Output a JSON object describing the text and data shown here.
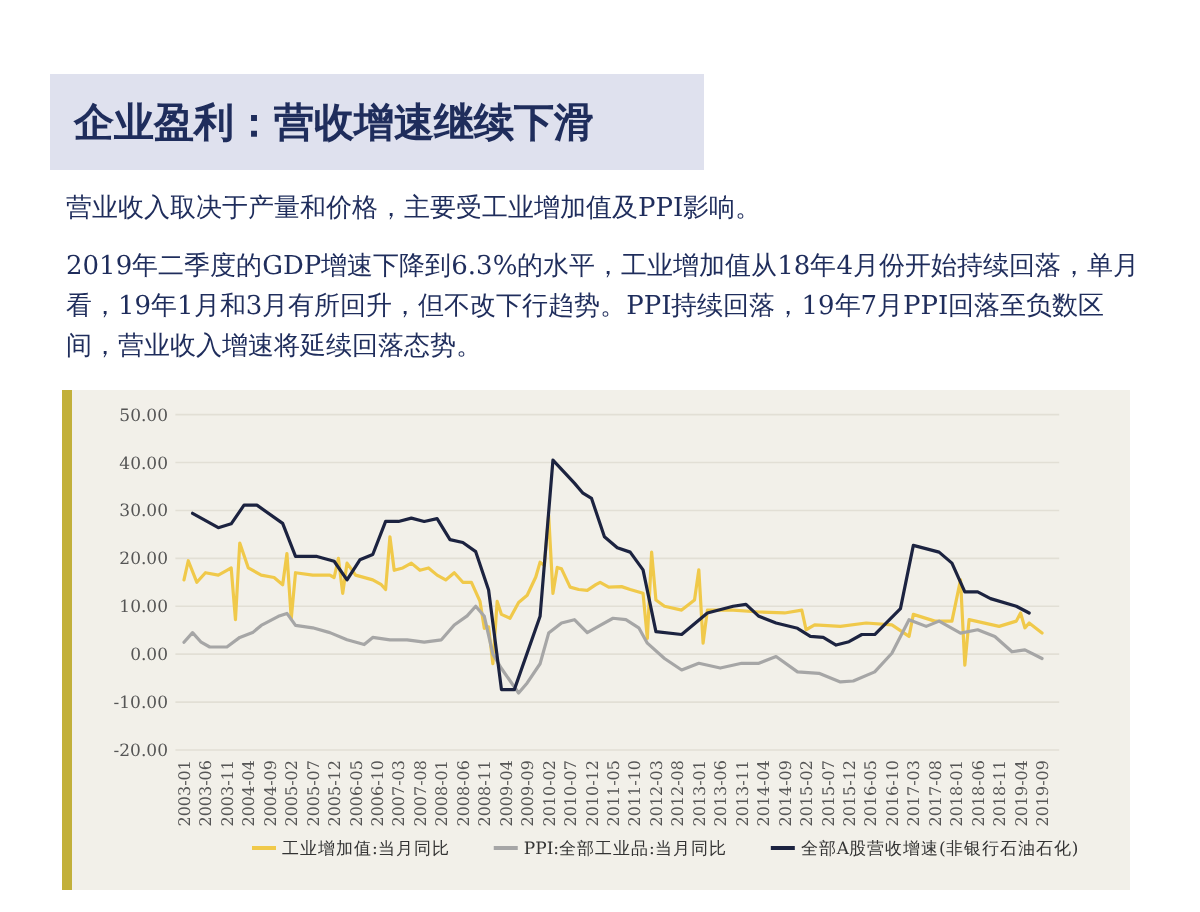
{
  "chart_data": {
    "type": "line",
    "title": "企业盈利：营收增速继续下滑",
    "subtitle": "营业收入取决于产量和价格，主要受工业增加值及PPI影响。",
    "annotations": [
      "2019年二季度的GDP增速下降到6.3%的水平，工业增加值从18年4月份开始持续回落，单月看，19年1月和3月有所回升，但不改下行趋势。PPI持续回落，19年7月PPI回落至负数区间，营业收入增速将延续回落态势。"
    ],
    "xlim": [
      "2002-11",
      "2020-01"
    ],
    "xticks": [
      "2003-01",
      "2003-06",
      "2003-11",
      "2004-04",
      "2004-09",
      "2005-02",
      "2005-07",
      "2005-12",
      "2006-05",
      "2006-10",
      "2007-03",
      "2007-08",
      "2008-01",
      "2008-06",
      "2008-11",
      "2009-04",
      "2009-09",
      "2010-02",
      "2010-07",
      "2010-12",
      "2011-05",
      "2011-10",
      "2012-03",
      "2012-08",
      "2013-01",
      "2013-06",
      "2013-11",
      "2014-04",
      "2014-09",
      "2015-02",
      "2015-07",
      "2015-12",
      "2016-05",
      "2016-10",
      "2017-03",
      "2017-08",
      "2018-01",
      "2018-06",
      "2018-11",
      "2019-04",
      "2019-09"
    ],
    "ylim": [
      -20,
      50
    ],
    "yticks": [
      {
        "value": -20,
        "label": "-20.00"
      },
      {
        "value": -10,
        "label": "-10.00"
      },
      {
        "value": 0,
        "label": "0.00"
      },
      {
        "value": 10,
        "label": "10.00"
      },
      {
        "value": 20,
        "label": "20.00"
      },
      {
        "value": 30,
        "label": "30.00"
      },
      {
        "value": 40,
        "label": "40.00"
      },
      {
        "value": 50,
        "label": "50.00"
      }
    ],
    "grid": "y",
    "legend": "bottom",
    "series": [
      {
        "name": "工业增加值:当月同比",
        "color": "#f0c94a",
        "x": [
          "2003-01",
          "2003-02",
          "2003-04",
          "2003-06",
          "2003-09",
          "2003-11",
          "2003-12",
          "2004-01",
          "2004-02",
          "2004-04",
          "2004-07",
          "2004-10",
          "2004-12",
          "2005-01",
          "2005-02",
          "2005-03",
          "2005-07",
          "2005-11",
          "2005-12",
          "2006-01",
          "2006-02",
          "2006-03",
          "2006-05",
          "2006-09",
          "2006-11",
          "2006-12",
          "2007-01",
          "2007-02",
          "2007-04",
          "2007-06",
          "2007-08",
          "2007-10",
          "2007-12",
          "2008-02",
          "2008-04",
          "2008-06",
          "2008-08",
          "2008-10",
          "2008-11",
          "2008-12",
          "2009-01",
          "2009-02",
          "2009-03",
          "2009-05",
          "2009-07",
          "2009-09",
          "2009-11",
          "2009-12",
          "2010-01",
          "2010-02",
          "2010-03",
          "2010-04",
          "2010-05",
          "2010-07",
          "2010-09",
          "2010-11",
          "2011-01",
          "2011-02",
          "2011-04",
          "2011-07",
          "2011-09",
          "2011-12",
          "2012-01",
          "2012-02",
          "2012-03",
          "2012-05",
          "2012-09",
          "2012-12",
          "2013-01",
          "2013-02",
          "2013-03",
          "2013-09",
          "2014-03",
          "2014-09",
          "2015-01",
          "2015-02",
          "2015-04",
          "2015-10",
          "2016-04",
          "2016-10",
          "2017-02",
          "2017-03",
          "2017-08",
          "2017-12",
          "2018-02",
          "2018-03",
          "2018-04",
          "2018-11",
          "2019-03",
          "2019-04",
          "2019-05",
          "2019-06",
          "2019-09"
        ],
        "values": [
          15.5,
          19.5,
          15.0,
          17.0,
          16.5,
          17.5,
          18.0,
          7.2,
          23.2,
          18.0,
          16.5,
          16.0,
          14.5,
          21.0,
          7.4,
          17.0,
          16.5,
          16.5,
          16.0,
          20.0,
          12.7,
          19.0,
          16.5,
          15.5,
          14.5,
          13.5,
          24.5,
          17.5,
          18.0,
          19.0,
          17.5,
          18.0,
          16.5,
          15.5,
          17.0,
          15.0,
          15.0,
          11.0,
          5.4,
          5.7,
          -2.0,
          11.0,
          8.3,
          7.5,
          10.8,
          12.3,
          16.1,
          19.2,
          18.5,
          29.0,
          12.7,
          18.1,
          17.8,
          14.0,
          13.5,
          13.3,
          14.5,
          15.0,
          14.0,
          14.1,
          13.5,
          12.7,
          3.3,
          21.3,
          11.3,
          10.0,
          9.2,
          11.3,
          17.6,
          2.3,
          9.2,
          9.2,
          8.8,
          8.6,
          9.2,
          5.1,
          6.1,
          5.8,
          6.5,
          6.1,
          3.7,
          8.3,
          6.9,
          6.9,
          15.5,
          -2.3,
          7.2,
          5.8,
          6.9,
          8.6,
          5.5,
          6.5,
          4.4
        ]
      },
      {
        "name": "PPI:全部工业品:当月同比",
        "color": "#a6a6a6",
        "x": [
          "2003-01",
          "2003-03",
          "2003-05",
          "2003-07",
          "2003-11",
          "2004-02",
          "2004-05",
          "2004-07",
          "2004-11",
          "2005-01",
          "2005-03",
          "2005-07",
          "2005-11",
          "2006-03",
          "2006-07",
          "2006-09",
          "2007-01",
          "2007-05",
          "2007-09",
          "2008-01",
          "2008-04",
          "2008-07",
          "2008-09",
          "2008-11",
          "2009-01",
          "2009-03",
          "2009-07",
          "2009-09",
          "2009-12",
          "2010-02",
          "2010-05",
          "2010-08",
          "2010-11",
          "2011-02",
          "2011-05",
          "2011-08",
          "2011-11",
          "2012-01",
          "2012-05",
          "2012-09",
          "2013-01",
          "2013-06",
          "2013-11",
          "2014-03",
          "2014-07",
          "2014-12",
          "2015-05",
          "2015-10",
          "2016-01",
          "2016-06",
          "2016-10",
          "2017-02",
          "2017-06",
          "2017-09",
          "2018-02",
          "2018-06",
          "2018-10",
          "2019-02",
          "2019-05",
          "2019-09"
        ],
        "values": [
          2.5,
          4.5,
          2.5,
          1.5,
          1.5,
          3.5,
          4.5,
          6.0,
          7.9,
          8.5,
          6.0,
          5.5,
          4.5,
          3.0,
          2.0,
          3.5,
          3.0,
          3.0,
          2.5,
          3.0,
          6.1,
          8.0,
          10.0,
          7.9,
          0.0,
          -3.0,
          -8.1,
          -6.0,
          -2.0,
          4.4,
          6.5,
          7.2,
          4.5,
          6.0,
          7.5,
          7.2,
          5.5,
          2.3,
          -0.9,
          -3.3,
          -1.9,
          -2.9,
          -1.9,
          -1.9,
          -0.5,
          -3.7,
          -4.0,
          -5.8,
          -5.6,
          -3.7,
          0.2,
          7.2,
          5.8,
          6.9,
          4.4,
          5.1,
          3.7,
          0.5,
          0.9,
          -0.9
        ]
      },
      {
        "name": "全部A股营收增速(非银行石油石化)",
        "color": "#1c2340",
        "x": [
          "2003-03",
          "2003-09",
          "2003-12",
          "2004-03",
          "2004-06",
          "2004-12",
          "2005-03",
          "2005-08",
          "2005-12",
          "2006-03",
          "2006-06",
          "2006-09",
          "2006-12",
          "2007-03",
          "2007-06",
          "2007-09",
          "2007-12",
          "2008-03",
          "2008-06",
          "2008-09",
          "2008-12",
          "2009-03",
          "2009-06",
          "2009-12",
          "2010-03",
          "2010-08",
          "2010-10",
          "2010-12",
          "2011-03",
          "2011-06",
          "2011-09",
          "2011-12",
          "2012-03",
          "2012-09",
          "2013-03",
          "2013-09",
          "2013-12",
          "2014-03",
          "2014-07",
          "2014-12",
          "2015-03",
          "2015-06",
          "2015-09",
          "2015-12",
          "2016-03",
          "2016-06",
          "2016-12",
          "2017-03",
          "2017-09",
          "2017-12",
          "2018-03",
          "2018-06",
          "2018-09",
          "2019-03",
          "2019-06"
        ],
        "values": [
          29.4,
          26.4,
          27.2,
          31.1,
          31.1,
          27.3,
          20.4,
          20.4,
          19.4,
          15.5,
          19.7,
          20.8,
          27.7,
          27.7,
          28.4,
          27.7,
          28.3,
          23.9,
          23.3,
          21.4,
          13.4,
          -7.4,
          -7.4,
          7.9,
          40.5,
          35.7,
          33.6,
          32.5,
          24.5,
          22.2,
          21.3,
          17.6,
          4.7,
          4.1,
          8.6,
          10.0,
          10.4,
          7.9,
          6.5,
          5.4,
          3.7,
          3.5,
          1.9,
          2.6,
          4.1,
          4.1,
          9.5,
          22.7,
          21.3,
          19.0,
          13.0,
          13.0,
          11.6,
          10.0,
          8.6
        ]
      }
    ]
  }
}
